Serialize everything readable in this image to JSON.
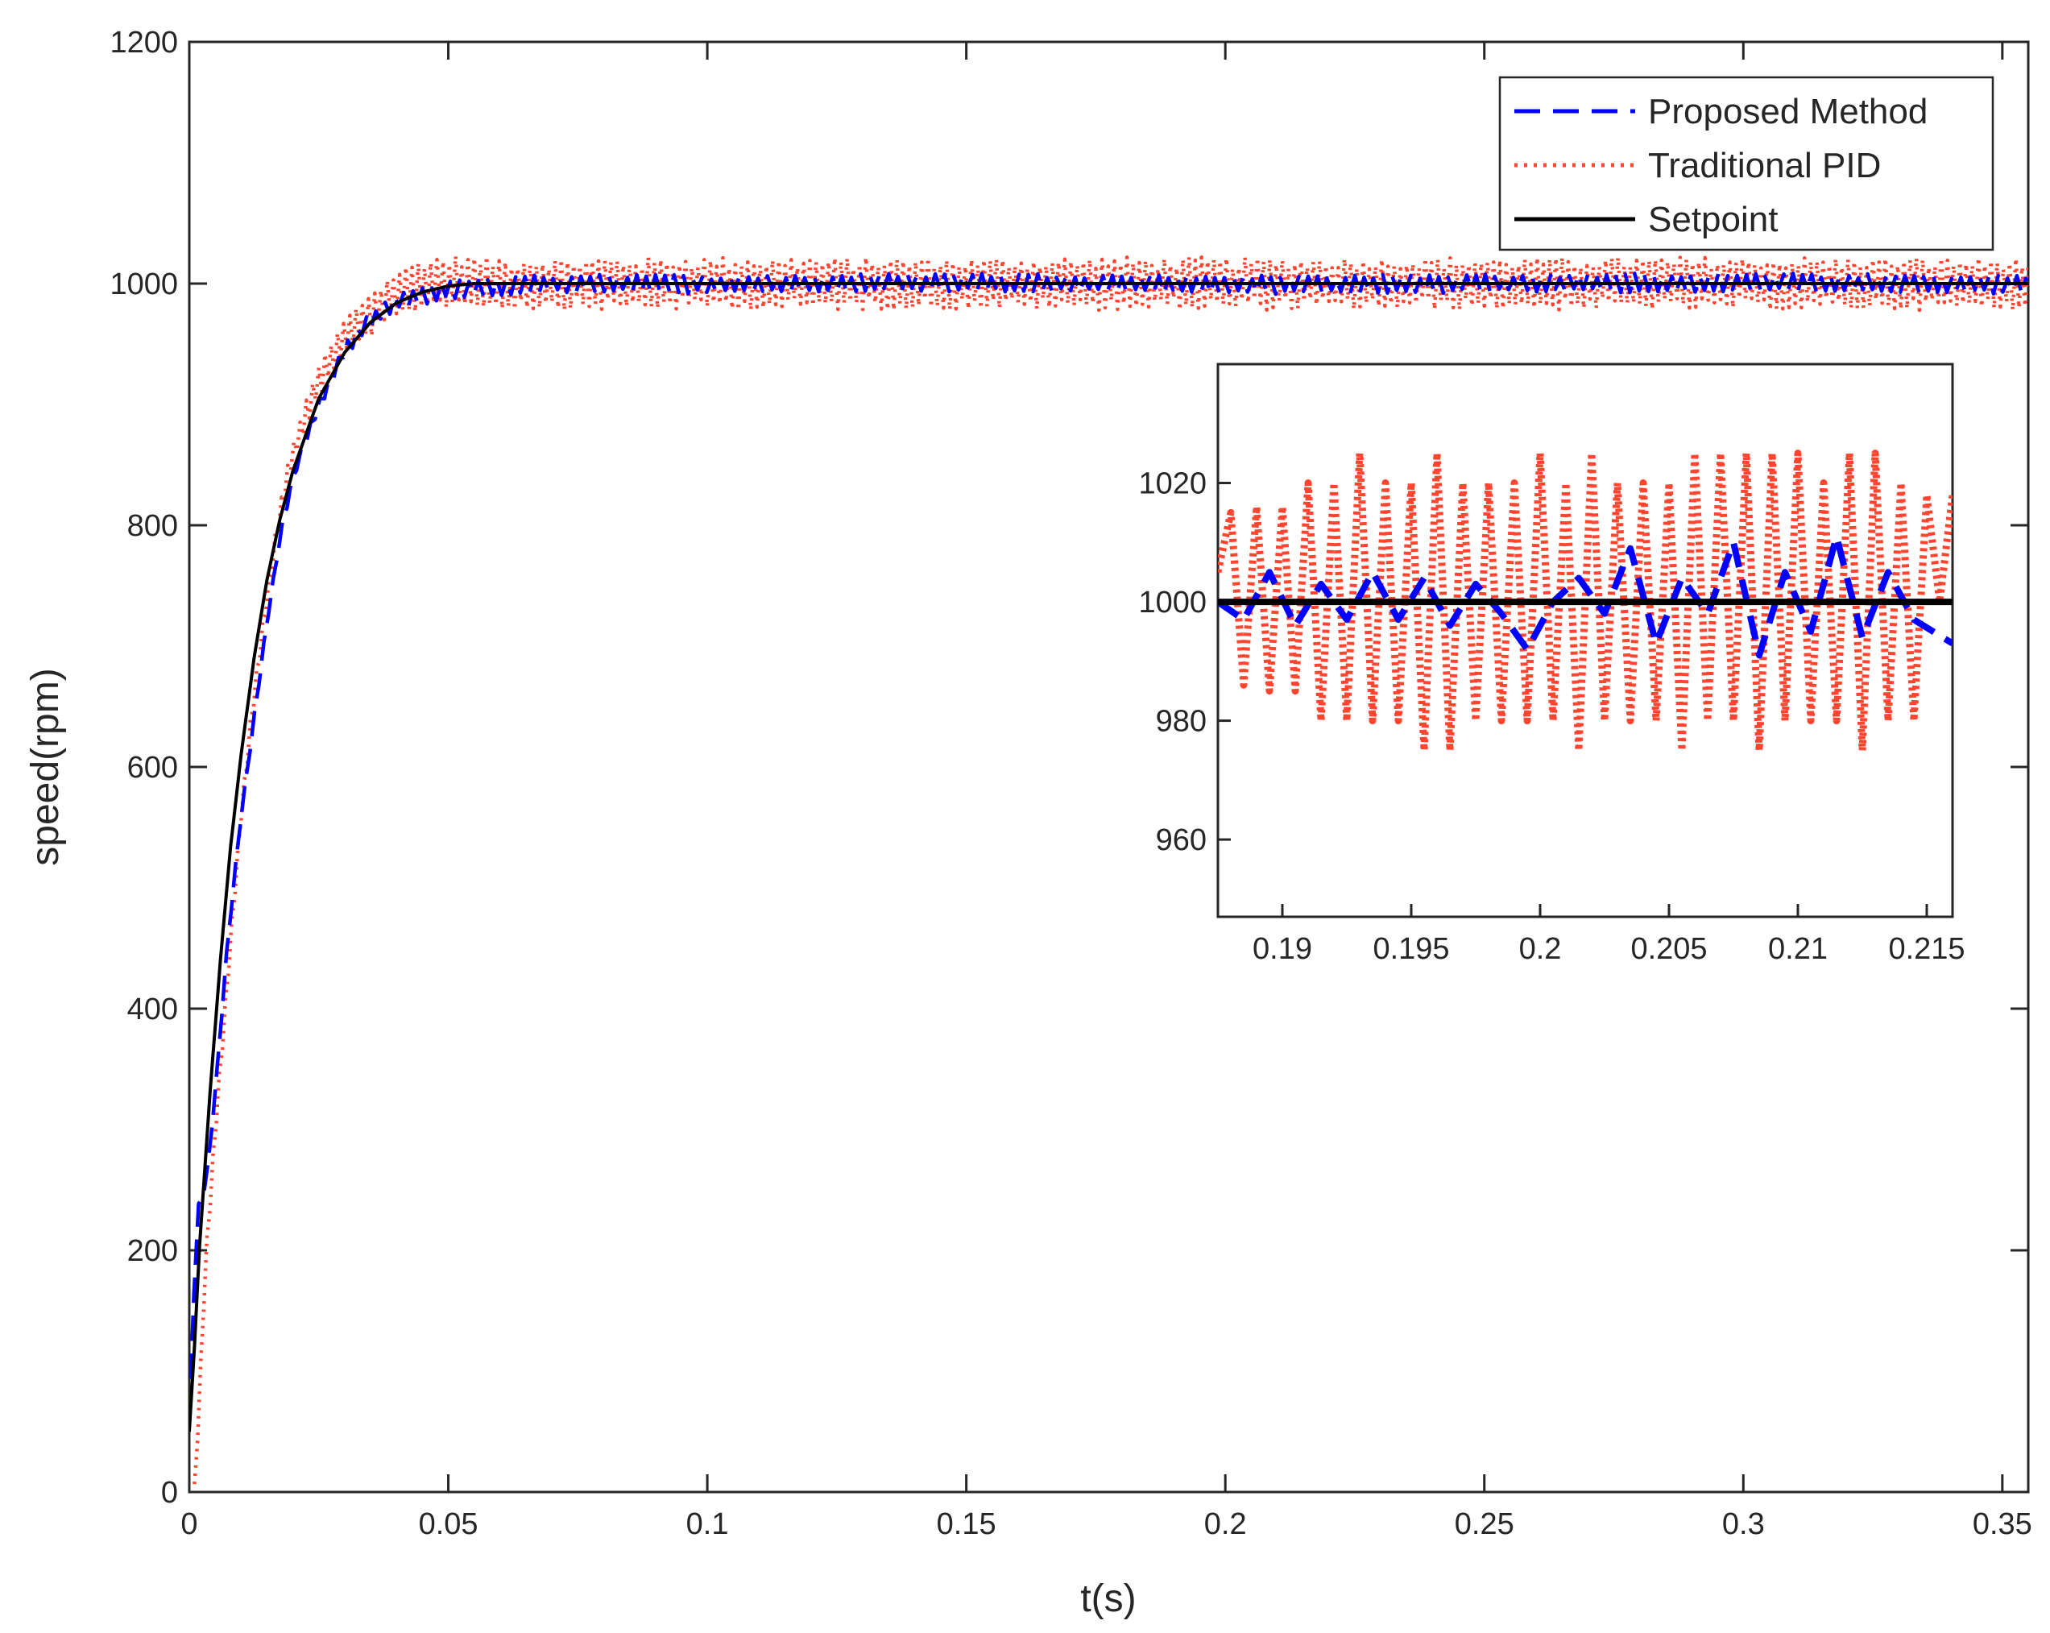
{
  "chart_data": [
    {
      "type": "line",
      "role": "main",
      "xlabel": "t(s)",
      "ylabel": "speed(rpm)",
      "xlim": [
        0,
        0.355
      ],
      "ylim": [
        0,
        1200
      ],
      "xticks": [
        0,
        0.05,
        0.1,
        0.15,
        0.2,
        0.25,
        0.3,
        0.35
      ],
      "xtick_labels": [
        "0",
        "0.05",
        "0.1",
        "0.15",
        "0.2",
        "0.25",
        "0.3",
        "0.35"
      ],
      "yticks": [
        0,
        200,
        400,
        600,
        800,
        1000,
        1200
      ],
      "ytick_labels": [
        "0",
        "200",
        "400",
        "600",
        "800",
        "1000",
        "1200"
      ],
      "legend_location": "top-right",
      "series": [
        {
          "name": "Proposed Method",
          "style": "dashed",
          "color": "#0000ff",
          "description": "first-order rise toward setpoint with small noise",
          "x": [
            0,
            0.001,
            0.002,
            0.003,
            0.005,
            0.0075,
            0.01,
            0.0125,
            0.015,
            0.0175,
            0.02,
            0.025,
            0.03,
            0.035,
            0.04,
            0.045,
            0.05,
            0.06,
            0.08,
            0.1,
            0.15,
            0.2,
            0.25,
            0.3,
            0.355
          ],
          "y": [
            60,
            180,
            250,
            245,
            330,
            460,
            560,
            640,
            720,
            790,
            840,
            900,
            945,
            970,
            985,
            990,
            995,
            998,
            1001,
            999,
            1001,
            999,
            1000,
            1001,
            999
          ],
          "noise_amplitude": 8
        },
        {
          "name": "Traditional PID",
          "style": "dotted",
          "color": "#ff4530",
          "description": "first-order rise with larger oscillation band around setpoint",
          "x": [
            0.001,
            0.002,
            0.003,
            0.005,
            0.0075,
            0.01,
            0.0125,
            0.015,
            0.0175,
            0.02,
            0.025,
            0.03,
            0.035,
            0.04,
            0.045,
            0.05,
            0.06,
            0.08,
            0.1,
            0.15,
            0.2,
            0.25,
            0.3,
            0.355
          ],
          "y": [
            0,
            80,
            180,
            300,
            430,
            560,
            660,
            740,
            810,
            860,
            920,
            955,
            975,
            990,
            1000,
            1002,
            1000,
            1000,
            1000,
            1000,
            1000,
            1000,
            1000,
            1000
          ],
          "noise_amplitude": 22
        },
        {
          "name": "Setpoint",
          "style": "solid",
          "color": "#000000",
          "description": "reference trajectory 1000*(1-exp(-t/tau))",
          "x": [
            0,
            0.001,
            0.002,
            0.004,
            0.006,
            0.008,
            0.01,
            0.0125,
            0.015,
            0.0175,
            0.02,
            0.025,
            0.03,
            0.035,
            0.04,
            0.045,
            0.05,
            0.055,
            0.06,
            0.1,
            0.2,
            0.3,
            0.355
          ],
          "y": [
            50,
            120,
            205,
            330,
            440,
            535,
            610,
            690,
            755,
            805,
            845,
            905,
            943,
            968,
            984,
            993,
            998,
            1000,
            1000,
            1000,
            1000,
            1000,
            1000
          ]
        }
      ]
    },
    {
      "type": "line",
      "role": "inset",
      "xlim": [
        0.1875,
        0.216
      ],
      "ylim": [
        947,
        1040
      ],
      "xticks": [
        0.19,
        0.195,
        0.2,
        0.205,
        0.21,
        0.215
      ],
      "xtick_labels": [
        "0.19",
        "0.195",
        "0.2",
        "0.205",
        "0.21",
        "0.215"
      ],
      "yticks": [
        960,
        980,
        1000,
        1020
      ],
      "ytick_labels": [
        "960",
        "980",
        "1000",
        "1020"
      ],
      "series": [
        {
          "name": "Proposed Method",
          "style": "dashed",
          "color": "#0000ff",
          "x": [
            0.1875,
            0.1885,
            0.1895,
            0.1905,
            0.1915,
            0.1925,
            0.1935,
            0.1945,
            0.1955,
            0.1965,
            0.1975,
            0.1985,
            0.1995,
            0.2005,
            0.2015,
            0.2025,
            0.2035,
            0.2045,
            0.2055,
            0.2065,
            0.2075,
            0.2085,
            0.2095,
            0.2105,
            0.2115,
            0.2125,
            0.2135,
            0.2145,
            0.216
          ],
          "y": [
            1000,
            997,
            1005,
            996,
            1003,
            997,
            1005,
            997,
            1004,
            996,
            1003,
            998,
            992,
            1000,
            1004,
            998,
            1009,
            993,
            1004,
            998,
            1010,
            991,
            1005,
            995,
            1011,
            994,
            1005,
            997,
            993
          ]
        },
        {
          "name": "Traditional PID",
          "style": "dotted",
          "color": "#ff4530",
          "x": [
            0.1875,
            0.188,
            0.1885,
            0.189,
            0.1895,
            0.19,
            0.1905,
            0.191,
            0.1915,
            0.192,
            0.1925,
            0.193,
            0.1935,
            0.194,
            0.1945,
            0.195,
            0.1955,
            0.196,
            0.1965,
            0.197,
            0.1975,
            0.198,
            0.1985,
            0.199,
            0.1995,
            0.2,
            0.2005,
            0.201,
            0.2015,
            0.202,
            0.2025,
            0.203,
            0.2035,
            0.204,
            0.2045,
            0.205,
            0.2055,
            0.206,
            0.2065,
            0.207,
            0.2075,
            0.208,
            0.2085,
            0.209,
            0.2095,
            0.21,
            0.2105,
            0.211,
            0.2115,
            0.212,
            0.2125,
            0.213,
            0.2135,
            0.214,
            0.2145,
            0.215,
            0.2155,
            0.216
          ],
          "y": [
            1005,
            1015,
            986,
            1016,
            985,
            1016,
            985,
            1020,
            980,
            1020,
            980,
            1025,
            980,
            1020,
            980,
            1020,
            975,
            1025,
            975,
            1020,
            980,
            1020,
            980,
            1020,
            980,
            1025,
            980,
            1020,
            975,
            1025,
            980,
            1020,
            980,
            1020,
            980,
            1020,
            975,
            1025,
            980,
            1025,
            980,
            1025,
            975,
            1025,
            980,
            1025,
            980,
            1020,
            980,
            1025,
            975,
            1025,
            980,
            1020,
            980,
            1018,
            1000,
            1018
          ]
        },
        {
          "name": "Setpoint",
          "style": "solid",
          "color": "#000000",
          "x": [
            0.1875,
            0.216
          ],
          "y": [
            1000,
            1000
          ]
        }
      ]
    }
  ]
}
